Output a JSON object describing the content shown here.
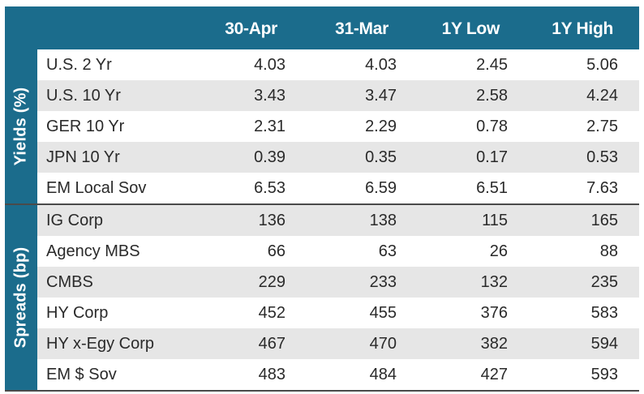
{
  "table": {
    "headers": [
      "30-Apr",
      "31-Mar",
      "1Y Low",
      "1Y High"
    ],
    "groups": [
      {
        "label": "Yields (%)",
        "rows": [
          {
            "name": "U.S. 2 Yr",
            "values": [
              "4.03",
              "4.03",
              "2.45",
              "5.06"
            ]
          },
          {
            "name": "U.S. 10 Yr",
            "values": [
              "3.43",
              "3.47",
              "2.58",
              "4.24"
            ]
          },
          {
            "name": "GER 10 Yr",
            "values": [
              "2.31",
              "2.29",
              "0.78",
              "2.75"
            ]
          },
          {
            "name": "JPN 10 Yr",
            "values": [
              "0.39",
              "0.35",
              "0.17",
              "0.53"
            ]
          },
          {
            "name": "EM Local Sov",
            "values": [
              "6.53",
              "6.59",
              "6.51",
              "7.63"
            ]
          }
        ]
      },
      {
        "label": "Spreads (bp)",
        "rows": [
          {
            "name": "IG Corp",
            "values": [
              "136",
              "138",
              "115",
              "165"
            ]
          },
          {
            "name": "Agency MBS",
            "values": [
              "66",
              "63",
              "26",
              "88"
            ]
          },
          {
            "name": "CMBS",
            "values": [
              "229",
              "233",
              "132",
              "235"
            ]
          },
          {
            "name": "HY Corp",
            "values": [
              "452",
              "455",
              "376",
              "583"
            ]
          },
          {
            "name": "HY x-Egy Corp",
            "values": [
              "467",
              "470",
              "382",
              "594"
            ]
          },
          {
            "name": "EM $ Sov",
            "values": [
              "483",
              "484",
              "427",
              "593"
            ]
          }
        ]
      }
    ],
    "colors": {
      "header_bg": "#1b6c8c",
      "row_shade": "#e6e6e6"
    }
  }
}
